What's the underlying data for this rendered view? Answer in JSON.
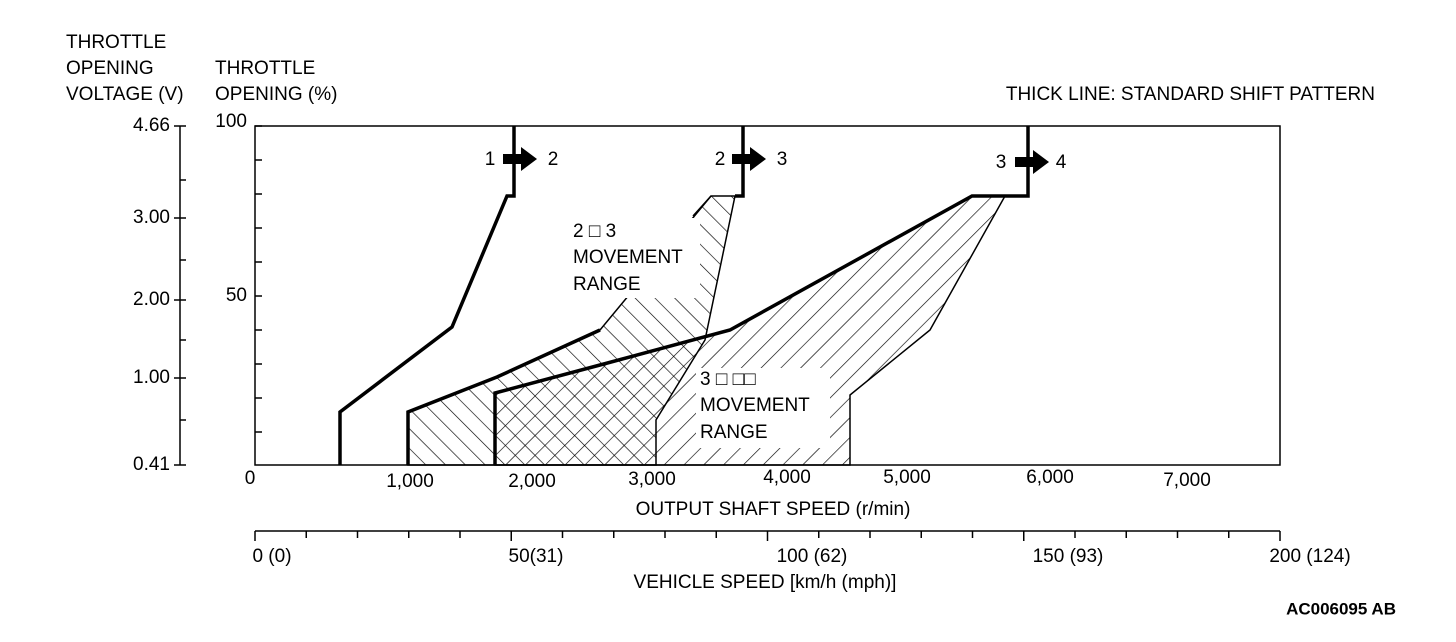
{
  "header": {
    "voltage_axis_title": [
      "THROTTLE",
      "OPENING",
      "VOLTAGE (V)"
    ],
    "opening_axis_title": [
      "THROTTLE",
      "OPENING (%)"
    ],
    "note": "THICK LINE: STANDARD SHIFT PATTERN"
  },
  "voltage_ticks": [
    "4.66",
    "3.00",
    "2.00",
    "1.00",
    "0.41"
  ],
  "opening_ticks": [
    "100",
    "50"
  ],
  "shaft_ticks": [
    "0",
    "1,000",
    "2,000",
    "3,000",
    "4,000",
    "5,000",
    "6,000",
    "7,000"
  ],
  "shaft_title": "OUTPUT SHAFT SPEED (r/min)",
  "vehicle_ticks": [
    "0 (0)",
    "50(31)",
    "100 (62)",
    "150 (93)",
    "200 (124)"
  ],
  "vehicle_title": "VEHICLE SPEED [km/h (mph)]",
  "shifts": [
    {
      "from": "1",
      "to": "2"
    },
    {
      "from": "2",
      "to": "3"
    },
    {
      "from": "3",
      "to": "4"
    }
  ],
  "ranges": [
    {
      "lines": [
        "2 □ 3",
        "MOVEMENT",
        "RANGE"
      ]
    },
    {
      "lines": [
        "3 □ □□",
        "MOVEMENT",
        "RANGE"
      ]
    }
  ],
  "figure_id": "AC006095 AB"
}
